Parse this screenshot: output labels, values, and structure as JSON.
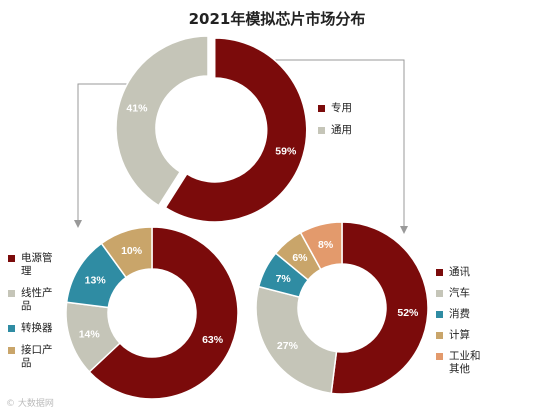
{
  "title": "2021年模拟芯片市场分布",
  "watermark": "© 大数据网",
  "chart_data": [
    {
      "type": "donut",
      "name": "top",
      "title": "2021年模拟芯片市场分布",
      "categories": [
        "专用",
        "通用"
      ],
      "values": [
        59,
        41
      ],
      "labels": [
        "59%",
        "41%"
      ],
      "colors": [
        "#7b0b0b",
        "#c5c5b8"
      ],
      "legend_position": "right"
    },
    {
      "type": "donut",
      "name": "left",
      "categories": [
        "电源管理",
        "线性产品",
        "转换器",
        "接口产品"
      ],
      "values": [
        63,
        14,
        13,
        10
      ],
      "labels": [
        "63%",
        "14%",
        "13%",
        "10%"
      ],
      "colors": [
        "#7b0b0b",
        "#c5c5b8",
        "#2f8ca3",
        "#c9a56a"
      ],
      "legend_position": "left"
    },
    {
      "type": "donut",
      "name": "right",
      "categories": [
        "通讯",
        "汽车",
        "消费",
        "计算",
        "工业和其他"
      ],
      "values": [
        52,
        27,
        7,
        6,
        8
      ],
      "labels": [
        "52%",
        "27%",
        "7%",
        "6%",
        "8%"
      ],
      "colors": [
        "#7b0b0b",
        "#c5c5b8",
        "#2f8ca3",
        "#c9a56a",
        "#e39a6c"
      ],
      "legend_position": "right"
    }
  ]
}
